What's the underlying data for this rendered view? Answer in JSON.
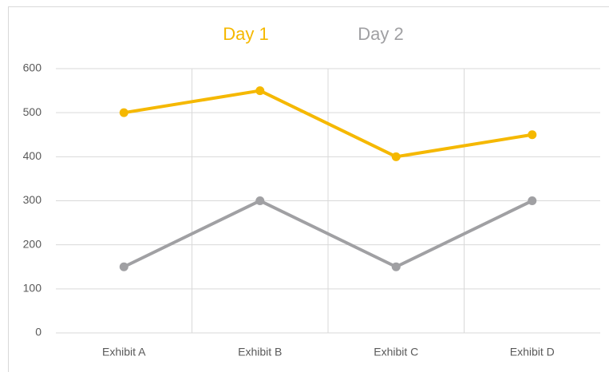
{
  "chart_data": {
    "type": "line",
    "categories": [
      "Exhibit A",
      "Exhibit B",
      "Exhibit C",
      "Exhibit D"
    ],
    "series": [
      {
        "name": "Day 1",
        "color": "#f5b800",
        "values": [
          500,
          550,
          400,
          450
        ]
      },
      {
        "name": "Day 2",
        "color": "#a0a0a3",
        "values": [
          150,
          300,
          150,
          300
        ]
      }
    ],
    "ylim": [
      0,
      600
    ],
    "yticks": [
      0,
      100,
      200,
      300,
      400,
      500,
      600
    ],
    "grid": true,
    "legend": "top"
  }
}
